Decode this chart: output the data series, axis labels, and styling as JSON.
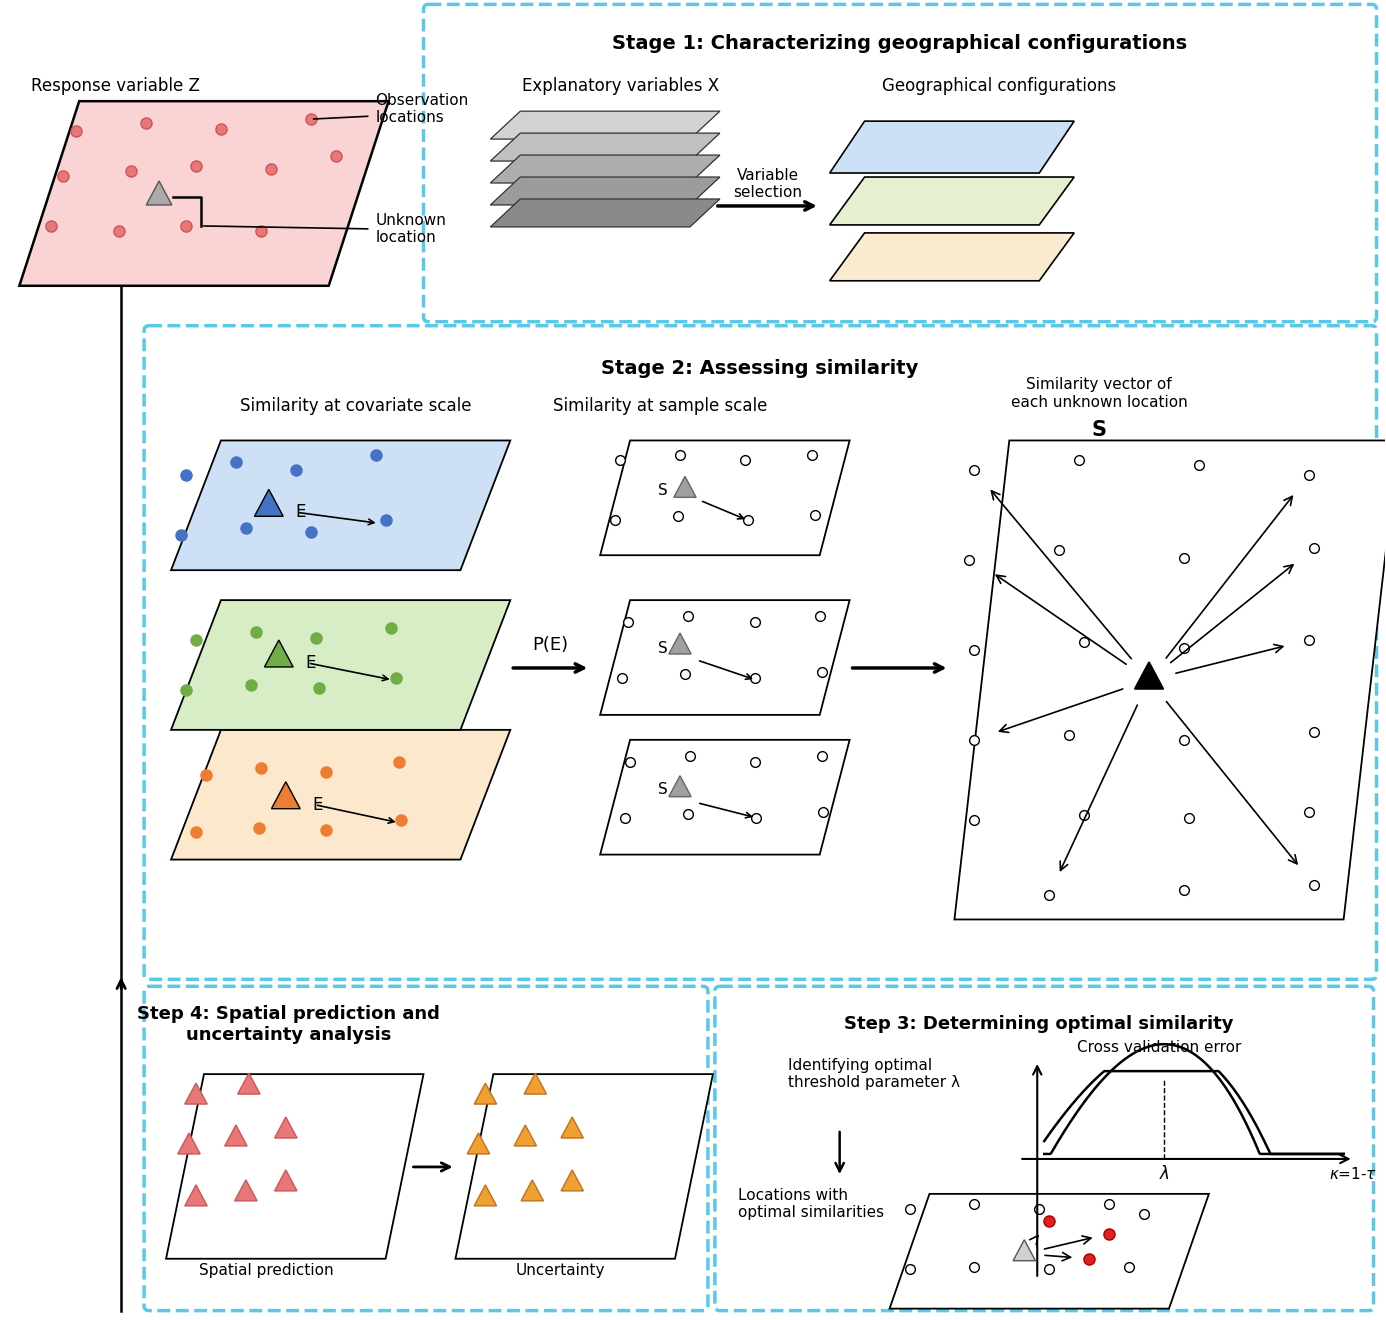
{
  "bg_color": "#ffffff",
  "dashed_border_color": "#5bc8e8",
  "stage1_title": "Stage 1: Characterizing geographical configurations",
  "stage2_title": "Stage 2: Assessing similarity",
  "step3_title": "Step 3: Determining optimal similarity",
  "step4_title": "Step 4: Spatial prediction and\nuncertainty analysis",
  "response_var_label": "Response variable Z",
  "obs_label": "Observation\nlocations",
  "unknown_label": "Unknown\nlocation",
  "expl_var_label": "Explanatory variables X",
  "geo_config_label": "Geographical configurations",
  "var_sel_label": "Variable\nselection",
  "sim_cov_label": "Similarity at covariate scale",
  "sim_sample_label": "Similarity at sample scale",
  "sim_vec_label": "Similarity vector of\neach unknown location",
  "sim_vec_bold": "S",
  "pe_label": "P(E)",
  "cv_error_label": "Cross validation error",
  "opt_thresh_label": "Identifying optimal\nthreshold parameter λ",
  "opt_loc_label": "Locations with\noptimal similarities",
  "spatial_pred_label": "Spatial prediction",
  "uncertainty_label": "Uncertainty",
  "pink_color": "#fad4d4",
  "blue_layer_color": "#cde0f5",
  "green_layer_color": "#d6edc6",
  "orange_layer_color": "#fce8cc",
  "blue_dot_color": "#4472c4",
  "green_dot_color": "#70ad47",
  "orange_dot_color": "#ed7d31",
  "red_dot_color": "#e02020",
  "pink_tri_color": "#e87878",
  "orange_tri_color": "#f0a030",
  "gray_tri_color": "#a0a0a0"
}
